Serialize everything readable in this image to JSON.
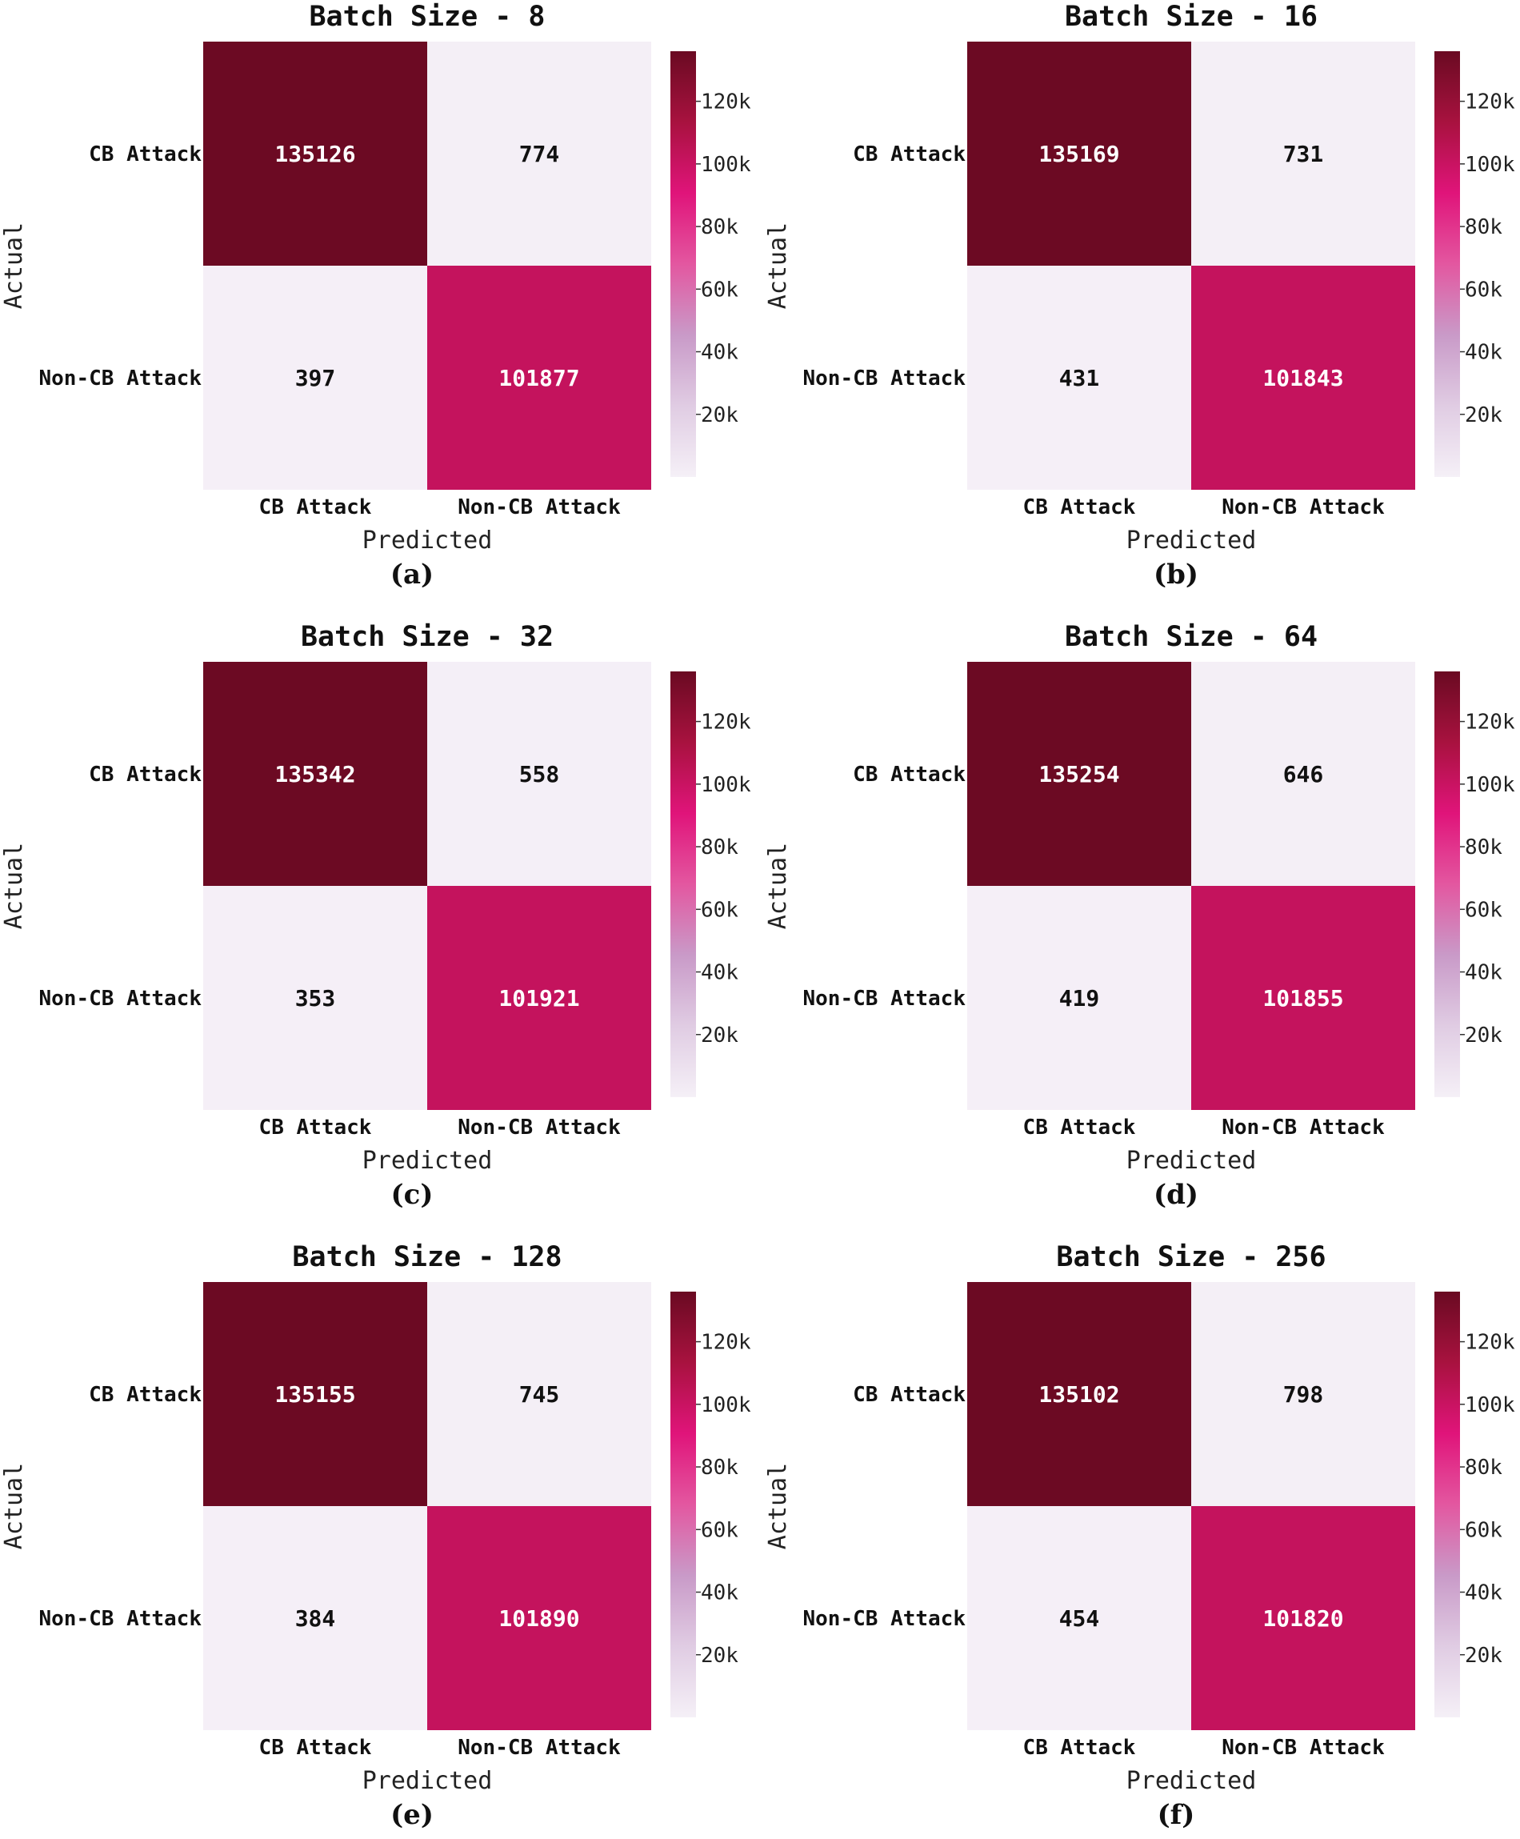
{
  "chart_data": [
    {
      "type": "heatmap",
      "panel": "(a)",
      "title": "Batch Size - 8",
      "xlabel": "Predicted",
      "ylabel": "Actual",
      "x_categories": [
        "CB Attack",
        "Non-CB Attack"
      ],
      "y_categories": [
        "CB Attack",
        "Non-CB Attack"
      ],
      "values": [
        [
          135126,
          774
        ],
        [
          397,
          101877
        ]
      ]
    },
    {
      "type": "heatmap",
      "panel": "(b)",
      "title": "Batch Size - 16",
      "xlabel": "Predicted",
      "ylabel": "Actual",
      "x_categories": [
        "CB Attack",
        "Non-CB Attack"
      ],
      "y_categories": [
        "CB Attack",
        "Non-CB Attack"
      ],
      "values": [
        [
          135169,
          731
        ],
        [
          431,
          101843
        ]
      ]
    },
    {
      "type": "heatmap",
      "panel": "(c)",
      "title": "Batch Size - 32",
      "xlabel": "Predicted",
      "ylabel": "Actual",
      "x_categories": [
        "CB Attack",
        "Non-CB Attack"
      ],
      "y_categories": [
        "CB Attack",
        "Non-CB Attack"
      ],
      "values": [
        [
          135342,
          558
        ],
        [
          353,
          101921
        ]
      ]
    },
    {
      "type": "heatmap",
      "panel": "(d)",
      "title": "Batch Size - 64",
      "xlabel": "Predicted",
      "ylabel": "Actual",
      "x_categories": [
        "CB Attack",
        "Non-CB Attack"
      ],
      "y_categories": [
        "CB Attack",
        "Non-CB Attack"
      ],
      "values": [
        [
          135254,
          646
        ],
        [
          419,
          101855
        ]
      ]
    },
    {
      "type": "heatmap",
      "panel": "(e)",
      "title": "Batch Size - 128",
      "xlabel": "Predicted",
      "ylabel": "Actual",
      "x_categories": [
        "CB Attack",
        "Non-CB Attack"
      ],
      "y_categories": [
        "CB Attack",
        "Non-CB Attack"
      ],
      "values": [
        [
          135155,
          745
        ],
        [
          384,
          101890
        ]
      ]
    },
    {
      "type": "heatmap",
      "panel": "(f)",
      "title": "Batch Size - 256",
      "xlabel": "Predicted",
      "ylabel": "Actual",
      "x_categories": [
        "CB Attack",
        "Non-CB Attack"
      ],
      "y_categories": [
        "CB Attack",
        "Non-CB Attack"
      ],
      "values": [
        [
          135102,
          798
        ],
        [
          454,
          101820
        ]
      ]
    }
  ],
  "colorbar": {
    "range": [
      0,
      136000
    ],
    "ticks": [
      20000,
      40000,
      60000,
      80000,
      100000,
      120000
    ],
    "tick_labels": [
      "20k",
      "40k",
      "60k",
      "80k",
      "100k",
      "120k"
    ],
    "stops": [
      "#f5f0f7",
      "#e0cce3",
      "#c99ac8",
      "#e357a0",
      "#e0147a",
      "#a8123f",
      "#6a0a22"
    ]
  }
}
